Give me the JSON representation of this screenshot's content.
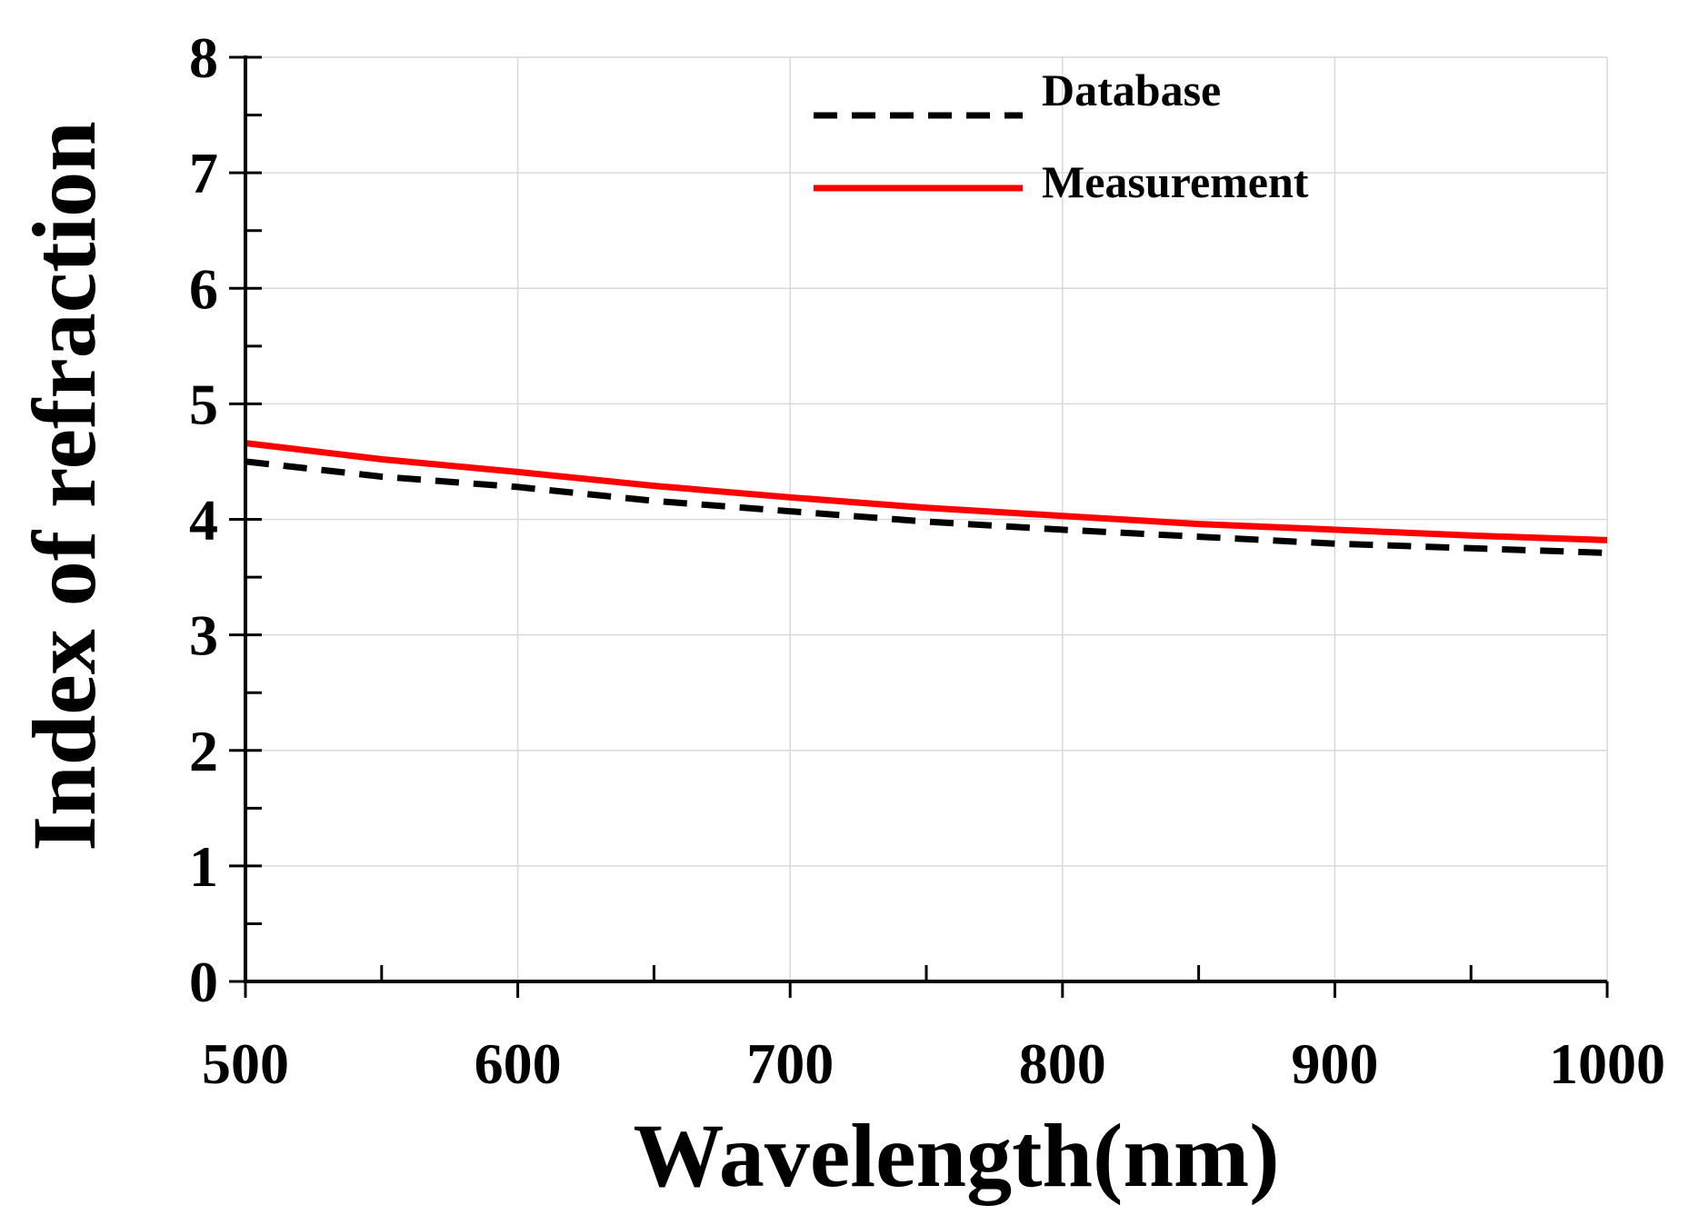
{
  "chart_data": {
    "type": "line",
    "title": "",
    "xlabel": "Wavelength(nm)",
    "ylabel": "Index of refraction",
    "xlim": [
      500,
      1000
    ],
    "ylim": [
      0,
      8
    ],
    "xticks": [
      500,
      600,
      700,
      800,
      900,
      1000
    ],
    "yticks": [
      0,
      1,
      2,
      3,
      4,
      5,
      6,
      7,
      8
    ],
    "grid": true,
    "legend_position": "top-right",
    "series": [
      {
        "name": "Database",
        "style": "dashed",
        "color": "#000000",
        "x": [
          500,
          550,
          600,
          650,
          700,
          750,
          800,
          850,
          900,
          950,
          1000
        ],
        "y": [
          4.5,
          4.37,
          4.28,
          4.16,
          4.07,
          3.98,
          3.91,
          3.85,
          3.79,
          3.75,
          3.71
        ]
      },
      {
        "name": "Measurement",
        "style": "solid",
        "color": "#ff0000",
        "x": [
          500,
          550,
          600,
          650,
          700,
          750,
          800,
          850,
          900,
          950,
          1000
        ],
        "y": [
          4.66,
          4.52,
          4.41,
          4.29,
          4.19,
          4.1,
          4.03,
          3.96,
          3.91,
          3.86,
          3.82
        ]
      }
    ]
  }
}
